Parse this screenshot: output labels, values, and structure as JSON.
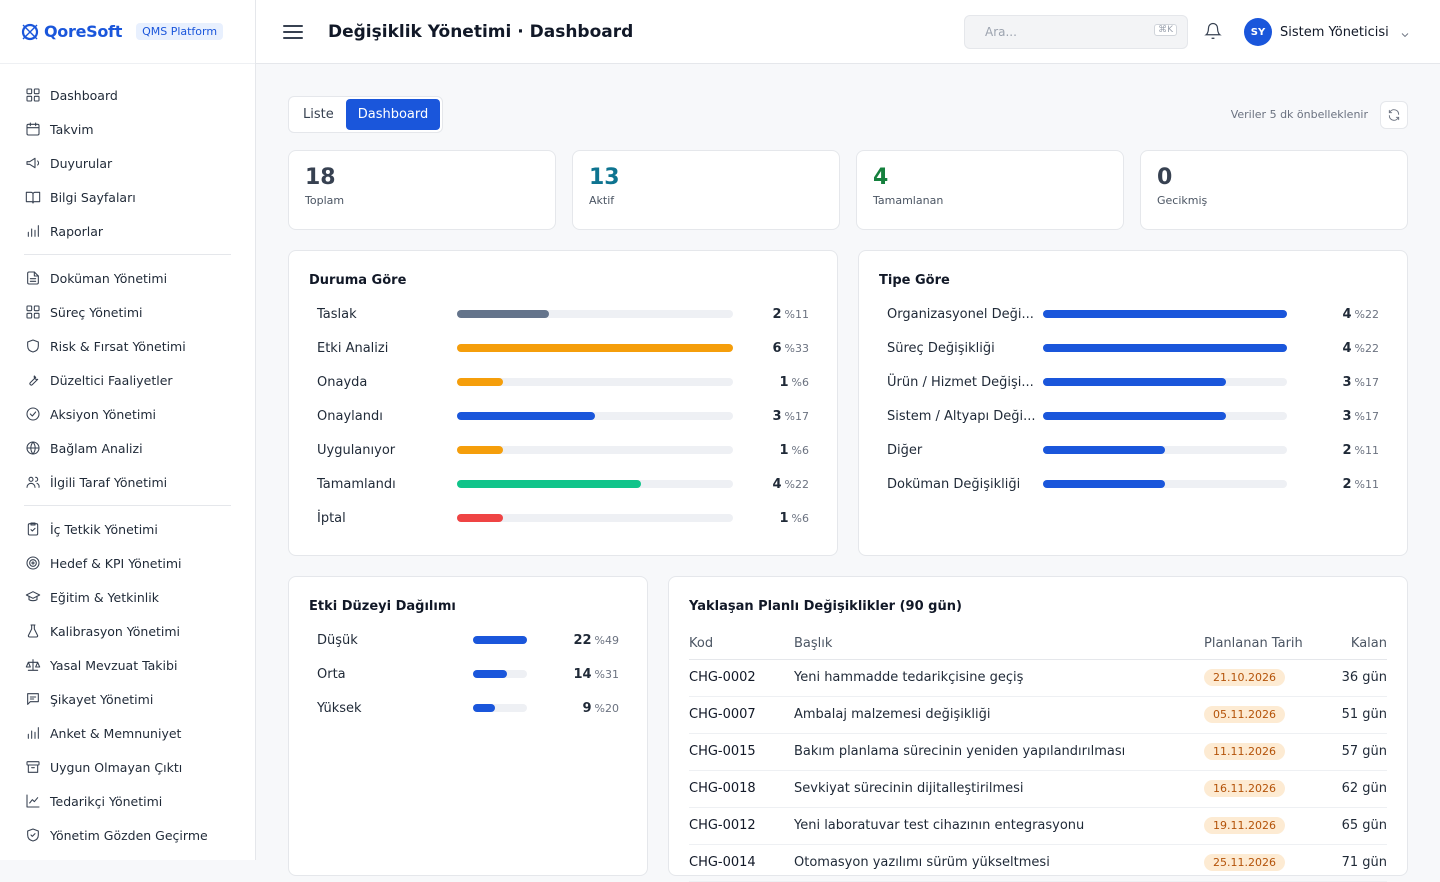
{
  "brand": {
    "name": "QoreSoft",
    "platform": "QMS Platform"
  },
  "sidebar": {
    "groups": [
      [
        {
          "label": "Dashboard",
          "icon": "grid-icon"
        },
        {
          "label": "Takvim",
          "icon": "calendar-icon"
        },
        {
          "label": "Duyurular",
          "icon": "megaphone-icon"
        },
        {
          "label": "Bilgi Sayfaları",
          "icon": "book-icon"
        },
        {
          "label": "Raporlar",
          "icon": "bar-chart-icon"
        }
      ],
      [
        {
          "label": "Doküman Yönetimi",
          "icon": "file-icon"
        },
        {
          "label": "Süreç Yönetimi",
          "icon": "grid-icon"
        },
        {
          "label": "Risk & Fırsat Yönetimi",
          "icon": "shield-icon"
        },
        {
          "label": "Düzeltici Faaliyetler",
          "icon": "wrench-icon"
        },
        {
          "label": "Aksiyon Yönetimi",
          "icon": "check-circle-icon"
        },
        {
          "label": "Bağlam Analizi",
          "icon": "globe-icon"
        },
        {
          "label": "İlgili Taraf Yönetimi",
          "icon": "users-icon"
        }
      ],
      [
        {
          "label": "İç Tetkik Yönetimi",
          "icon": "clipboard-check-icon"
        },
        {
          "label": "Hedef & KPI Yönetimi",
          "icon": "target-icon"
        },
        {
          "label": "Eğitim & Yetkinlik",
          "icon": "graduation-cap-icon"
        },
        {
          "label": "Kalibrasyon Yönetimi",
          "icon": "flask-icon"
        },
        {
          "label": "Yasal Mevzuat Takibi",
          "icon": "scale-icon"
        },
        {
          "label": "Şikayet Yönetimi",
          "icon": "message-icon"
        },
        {
          "label": "Anket & Memnuniyet",
          "icon": "bar-chart-icon"
        },
        {
          "label": "Uygun Olmayan Çıktı",
          "icon": "archive-icon"
        },
        {
          "label": "Tedarikçi Yönetimi",
          "icon": "line-chart-icon"
        },
        {
          "label": "Yönetim Gözden Geçirme",
          "icon": "shield-check-icon"
        }
      ]
    ]
  },
  "header": {
    "title": "Değişiklik Yönetimi · Dashboard",
    "search_placeholder": "Ara...",
    "search_shortcut": "⌘K",
    "user_initials": "SY",
    "user_name": "Sistem Yöneticisi"
  },
  "view": {
    "tabs": [
      "Liste",
      "Dashboard"
    ],
    "active": "Dashboard",
    "cache_note": "Veriler 5 dk önbelleklenir"
  },
  "stats": [
    {
      "value": "18",
      "label": "Toplam",
      "color": "#374151"
    },
    {
      "value": "13",
      "label": "Aktif",
      "color": "#0e7490"
    },
    {
      "value": "4",
      "label": "Tamamlanan",
      "color": "#15803d"
    },
    {
      "value": "0",
      "label": "Gecikmiş",
      "color": "#374151"
    }
  ],
  "by_status": {
    "title": "Duruma Göre",
    "max": 6,
    "rows": [
      {
        "label": "Taslak",
        "count": 2,
        "pct": "%11",
        "color": "#64748b"
      },
      {
        "label": "Etki Analizi",
        "count": 6,
        "pct": "%33",
        "color": "#f59e0b"
      },
      {
        "label": "Onayda",
        "count": 1,
        "pct": "%6",
        "color": "#f59e0b"
      },
      {
        "label": "Onaylandı",
        "count": 3,
        "pct": "%17",
        "color": "#1a56db"
      },
      {
        "label": "Uygulanıyor",
        "count": 1,
        "pct": "%6",
        "color": "#f59e0b"
      },
      {
        "label": "Tamamlandı",
        "count": 4,
        "pct": "%22",
        "color": "#10c48a"
      },
      {
        "label": "İptal",
        "count": 1,
        "pct": "%6",
        "color": "#ef4444"
      }
    ]
  },
  "by_type": {
    "title": "Tipe Göre",
    "max": 4,
    "rows": [
      {
        "label": "Organizasyonel Deği...",
        "count": 4,
        "pct": "%22",
        "color": "#1a56db"
      },
      {
        "label": "Süreç Değişikliği",
        "count": 4,
        "pct": "%22",
        "color": "#1a56db"
      },
      {
        "label": "Ürün / Hizmet Değişi...",
        "count": 3,
        "pct": "%17",
        "color": "#1a56db"
      },
      {
        "label": "Sistem / Altyapı Deği...",
        "count": 3,
        "pct": "%17",
        "color": "#1a56db"
      },
      {
        "label": "Diğer",
        "count": 2,
        "pct": "%11",
        "color": "#1a56db"
      },
      {
        "label": "Doküman Değişikliği",
        "count": 2,
        "pct": "%11",
        "color": "#1a56db"
      }
    ]
  },
  "impact": {
    "title": "Etki Düzeyi Dağılımı",
    "max": 22,
    "rows": [
      {
        "label": "Düşük",
        "count": 22,
        "pct": "%49",
        "color": "#1a56db"
      },
      {
        "label": "Orta",
        "count": 14,
        "pct": "%31",
        "color": "#1a56db"
      },
      {
        "label": "Yüksek",
        "count": 9,
        "pct": "%20",
        "color": "#1a56db"
      }
    ]
  },
  "planned": {
    "title": "Yaklaşan Planlı Değişiklikler (90 gün)",
    "columns": [
      "Kod",
      "Başlık",
      "Planlanan Tarih",
      "Kalan"
    ],
    "rows": [
      {
        "code": "CHG-0002",
        "title": "Yeni hammadde tedarikçisine geçiş",
        "date": "21.10.2026",
        "remaining": "36 gün"
      },
      {
        "code": "CHG-0007",
        "title": "Ambalaj malzemesi değişikliği",
        "date": "05.11.2026",
        "remaining": "51 gün"
      },
      {
        "code": "CHG-0015",
        "title": "Bakım planlama sürecinin yeniden yapılandırılması",
        "date": "11.11.2026",
        "remaining": "57 gün"
      },
      {
        "code": "CHG-0018",
        "title": "Sevkiyat sürecinin dijitalleştirilmesi",
        "date": "16.11.2026",
        "remaining": "62 gün"
      },
      {
        "code": "CHG-0012",
        "title": "Yeni laboratuvar test cihazının entegrasyonu",
        "date": "19.11.2026",
        "remaining": "65 gün"
      },
      {
        "code": "CHG-0014",
        "title": "Otomasyon yazılımı sürüm yükseltmesi",
        "date": "25.11.2026",
        "remaining": "71 gün"
      }
    ]
  }
}
